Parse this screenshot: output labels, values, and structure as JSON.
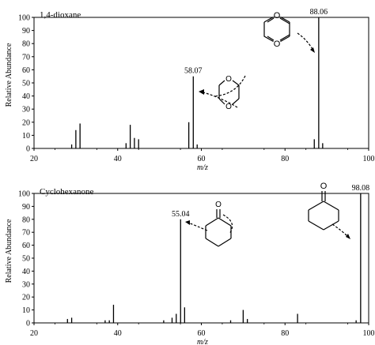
{
  "chart_data": [
    {
      "type": "bar",
      "title": "1,4-dioxane",
      "xlabel": "m/z",
      "ylabel": "Relative Abundance",
      "xlim": [
        20,
        100
      ],
      "ylim": [
        0,
        100
      ],
      "xticks": [
        "20",
        "40",
        "60",
        "80",
        "100"
      ],
      "yticks": [
        "0",
        "10",
        "20",
        "30",
        "40",
        "50",
        "60",
        "70",
        "80",
        "90",
        "100"
      ],
      "peaks": [
        {
          "mz": 29.0,
          "intensity": 3
        },
        {
          "mz": 30.0,
          "intensity": 14
        },
        {
          "mz": 31.0,
          "intensity": 19
        },
        {
          "mz": 42.0,
          "intensity": 4
        },
        {
          "mz": 43.0,
          "intensity": 18
        },
        {
          "mz": 44.0,
          "intensity": 8
        },
        {
          "mz": 45.0,
          "intensity": 7
        },
        {
          "mz": 57.0,
          "intensity": 20
        },
        {
          "mz": 58.07,
          "intensity": 55
        },
        {
          "mz": 59.0,
          "intensity": 3
        },
        {
          "mz": 87.0,
          "intensity": 7
        },
        {
          "mz": 88.06,
          "intensity": 100
        },
        {
          "mz": 89.0,
          "intensity": 4
        }
      ],
      "labels": [
        {
          "text": "88.06",
          "mz": 88.06,
          "intensity": 100
        },
        {
          "text": "58.07",
          "mz": 58.07,
          "intensity": 55
        }
      ]
    },
    {
      "type": "bar",
      "title": "Cyclohexanone",
      "xlabel": "m/z",
      "ylabel": "Relative Abundance",
      "xlim": [
        20,
        100
      ],
      "ylim": [
        0,
        100
      ],
      "xticks": [
        "20",
        "40",
        "60",
        "80",
        "100"
      ],
      "yticks": [
        "0",
        "10",
        "20",
        "30",
        "40",
        "50",
        "60",
        "70",
        "80",
        "90",
        "100"
      ],
      "peaks": [
        {
          "mz": 28.0,
          "intensity": 3
        },
        {
          "mz": 29.0,
          "intensity": 4
        },
        {
          "mz": 37.0,
          "intensity": 2
        },
        {
          "mz": 38.0,
          "intensity": 2
        },
        {
          "mz": 39.0,
          "intensity": 14
        },
        {
          "mz": 51.0,
          "intensity": 2
        },
        {
          "mz": 53.0,
          "intensity": 4
        },
        {
          "mz": 54.0,
          "intensity": 7
        },
        {
          "mz": 55.04,
          "intensity": 80
        },
        {
          "mz": 56.0,
          "intensity": 12
        },
        {
          "mz": 67.0,
          "intensity": 2
        },
        {
          "mz": 70.0,
          "intensity": 10
        },
        {
          "mz": 71.0,
          "intensity": 3
        },
        {
          "mz": 83.0,
          "intensity": 7
        },
        {
          "mz": 97.0,
          "intensity": 2
        },
        {
          "mz": 98.08,
          "intensity": 100
        }
      ],
      "labels": [
        {
          "text": "98.08",
          "mz": 98.08,
          "intensity": 100
        },
        {
          "text": "55.04",
          "mz": 55.04,
          "intensity": 80
        }
      ]
    }
  ]
}
